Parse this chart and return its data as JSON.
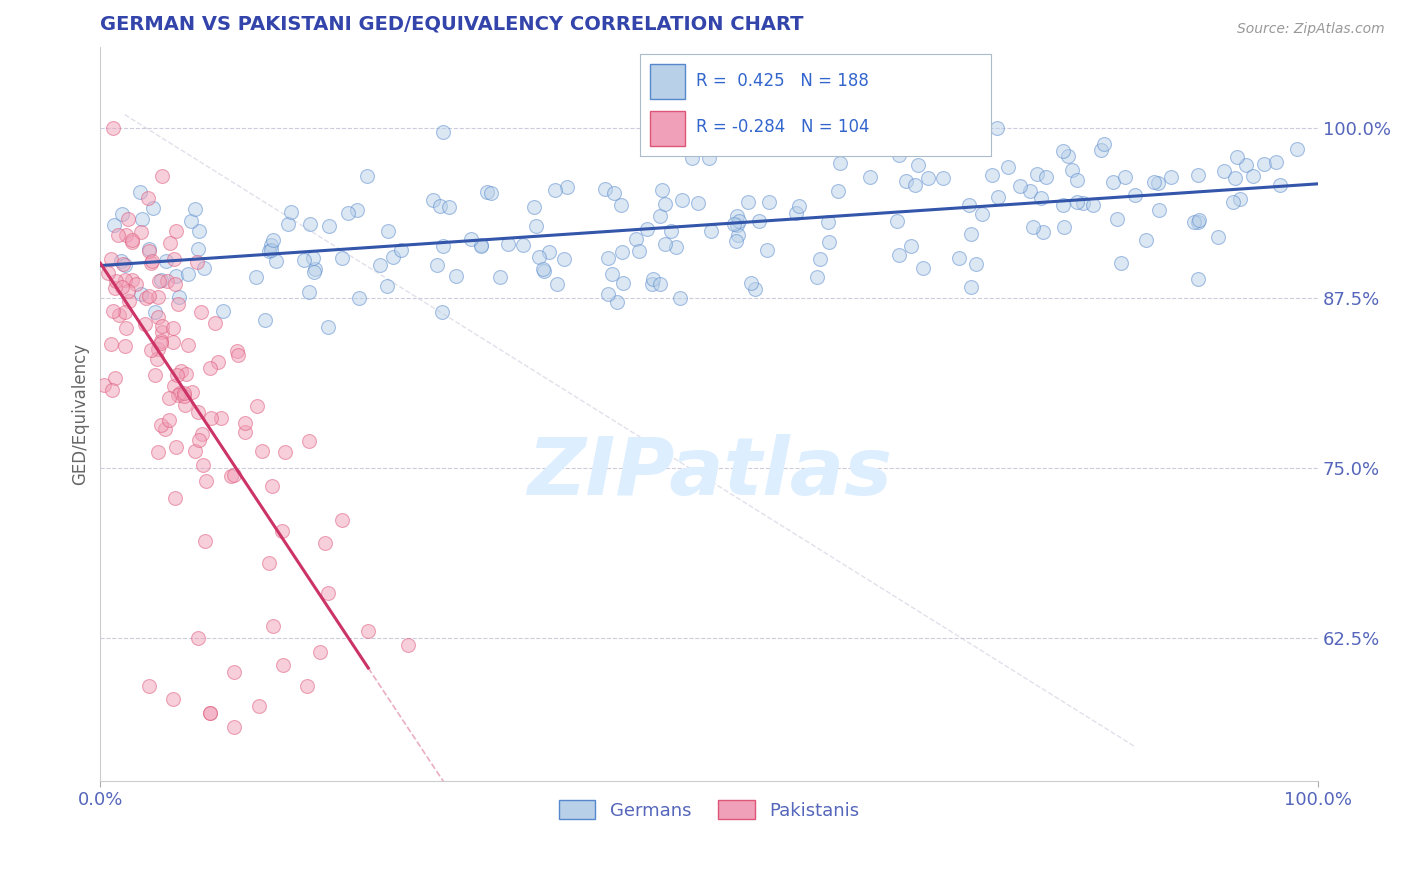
{
  "title": "GERMAN VS PAKISTANI GED/EQUIVALENCY CORRELATION CHART",
  "source_text": "Source: ZipAtlas.com",
  "ylabel": "GED/Equivalency",
  "xlim": [
    0.0,
    1.0
  ],
  "ylim": [
    0.52,
    1.06
  ],
  "r_german": 0.425,
  "n_german": 188,
  "r_pakistani": -0.284,
  "n_pakistani": 104,
  "german_color": "#b8d0e8",
  "german_edge_color": "#5588cc",
  "pakistani_color": "#f0a0b8",
  "pakistani_edge_color": "#dd5577",
  "trend_german_color": "#3355aa",
  "trend_pakistani_color": "#cc3366",
  "grid_color": "#ccccdd",
  "title_color": "#3344aa",
  "axis_label_color": "#5566bb",
  "legend_r_color": "#3366cc",
  "background_color": "#ffffff",
  "watermark_color": "#ddeeff",
  "marker_size": 100,
  "marker_alpha": 0.5,
  "ytick_positions": [
    0.625,
    0.75,
    0.875,
    1.0
  ],
  "ytick_labels": [
    "62.5%",
    "75.0%",
    "87.5%",
    "100.0%"
  ]
}
